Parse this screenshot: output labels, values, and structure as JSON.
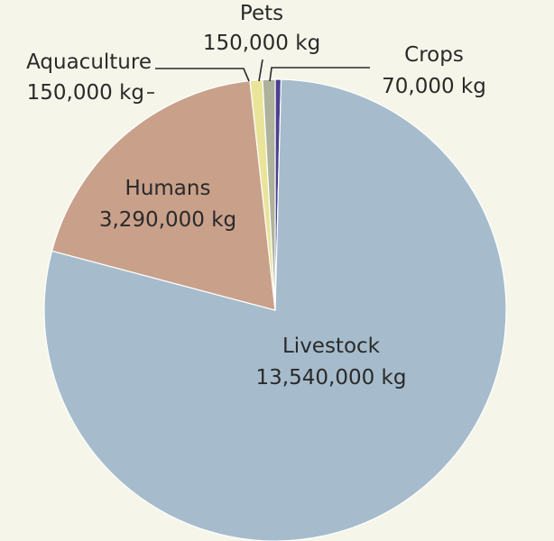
{
  "chart_data": {
    "type": "pie",
    "title": "",
    "slices": [
      {
        "name": "Crops",
        "label": "Crops",
        "value_label": "70,000 kg",
        "value": 70000,
        "color": "#4b3f8f"
      },
      {
        "name": "Livestock",
        "label": "Livestock",
        "value_label": "13,540,000 kg",
        "value": 13540000,
        "color": "#a6bccc"
      },
      {
        "name": "Humans",
        "label": "Humans",
        "value_label": "3,290,000 kg",
        "value": 3290000,
        "color": "#c9a08a"
      },
      {
        "name": "Aquaculture",
        "label": "Aquaculture",
        "value_label": "150,000 kg",
        "value": 150000,
        "color": "#e9e49a"
      },
      {
        "name": "Pets",
        "label": "Pets",
        "value_label": "150,000 kg",
        "value": 150000,
        "color": "#aeb29c"
      }
    ],
    "legend": "none",
    "start_angle": "12 o'clock",
    "direction": "clockwise"
  }
}
